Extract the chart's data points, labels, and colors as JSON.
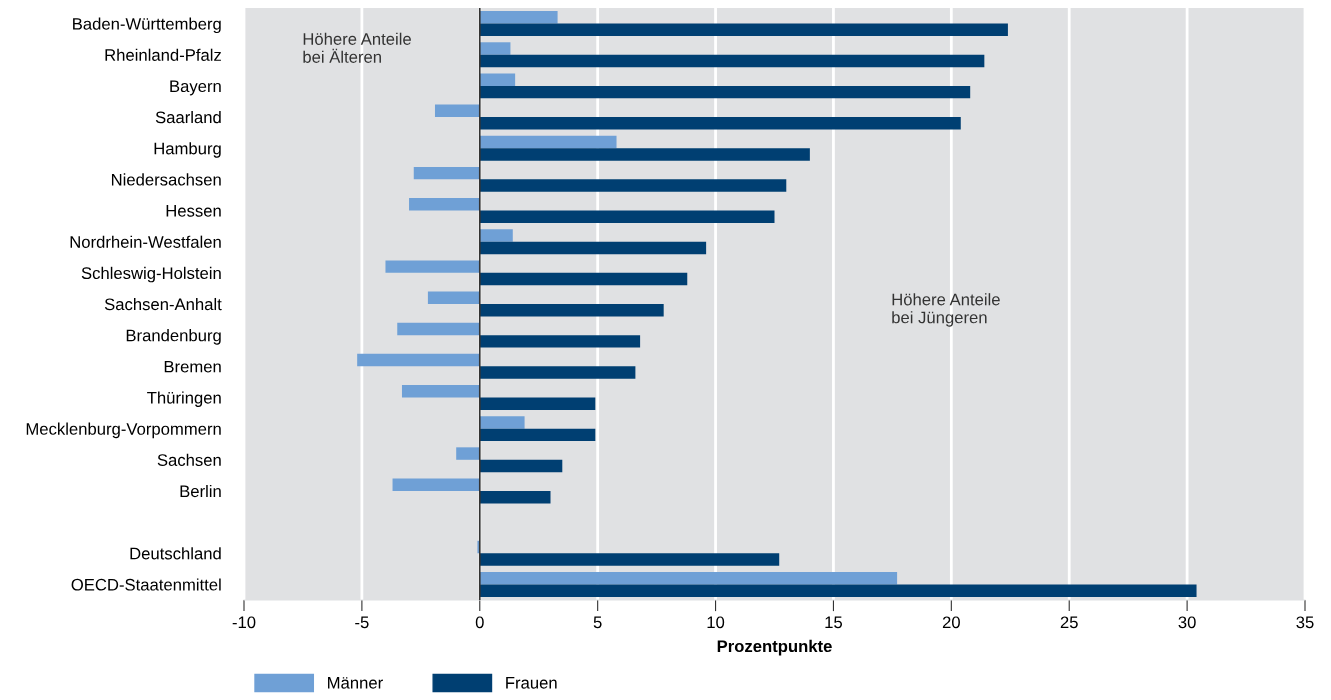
{
  "chart_data": {
    "type": "bar",
    "orientation": "horizontal",
    "xlabel": "Prozentpunkte",
    "categories": [
      "Baden-Württemberg",
      "Rheinland-Pfalz",
      "Bayern",
      "Saarland",
      "Hamburg",
      "Niedersachsen",
      "Hessen",
      "Nordrhein-Westfalen",
      "Schleswig-Holstein",
      "Sachsen-Anhalt",
      "Brandenburg",
      "Bremen",
      "Thüringen",
      "Mecklenburg-Vorpommern",
      "Sachsen",
      "Berlin",
      null,
      "Deutschland",
      "OECD-Staatenmittel"
    ],
    "series": [
      {
        "name": "Männer",
        "color": "#6fa0d6",
        "values": [
          3.3,
          1.3,
          1.5,
          -1.9,
          5.8,
          -2.8,
          -3.0,
          1.4,
          -4.0,
          -2.2,
          -3.5,
          -5.2,
          -3.3,
          1.9,
          -1.0,
          -3.7,
          null,
          -0.1,
          17.7
        ]
      },
      {
        "name": "Frauen",
        "color": "#003f72",
        "values": [
          22.4,
          21.4,
          20.8,
          20.4,
          14.0,
          13.0,
          12.5,
          9.6,
          8.8,
          7.8,
          6.8,
          6.6,
          4.9,
          4.9,
          3.5,
          3.0,
          null,
          12.7,
          30.4
        ]
      }
    ],
    "xlim": [
      -10,
      35
    ],
    "xticks": [
      -10,
      -5,
      0,
      5,
      10,
      15,
      20,
      25,
      30,
      35
    ],
    "grid": "x",
    "legend": "bottom left",
    "annotations": [
      "Höhere Anteile\nbei Älteren",
      "Höhere Anteile\nbei Jüngeren"
    ]
  }
}
